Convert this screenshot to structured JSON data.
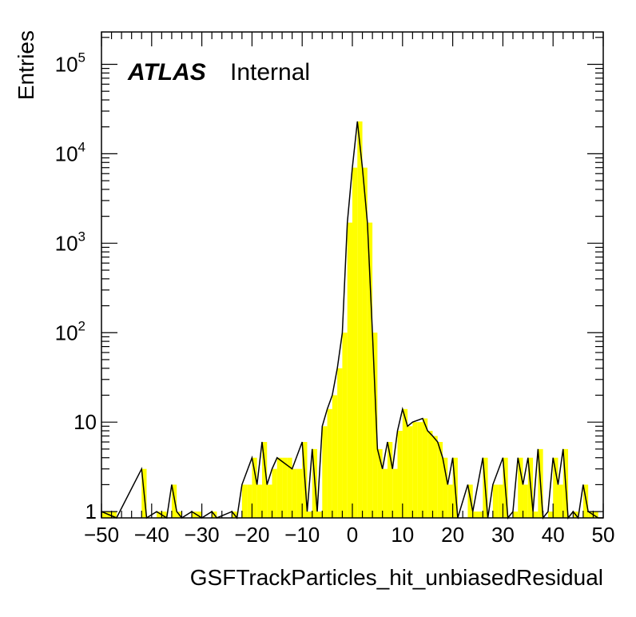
{
  "chart_data": {
    "type": "histogram",
    "xlabel": "GSFTrackParticles_hit_unbiasedResidual",
    "ylabel": "Entries",
    "label_bold": "ATLAS",
    "label_status": "Internal",
    "xlim": [
      -50,
      50
    ],
    "ylim": [
      0.85,
      230000
    ],
    "yscale": "log",
    "bin_width": 1,
    "x_ticks": [
      "−50",
      "−40",
      "−30",
      "−20",
      "−10",
      "0",
      "10",
      "20",
      "30",
      "40",
      "50"
    ],
    "y_ticks": [
      {
        "value": 1,
        "base": "1",
        "exp": ""
      },
      {
        "value": 10,
        "base": "10",
        "exp": ""
      },
      {
        "value": 100,
        "base": "10",
        "exp": "2"
      },
      {
        "value": 1000,
        "base": "10",
        "exp": "3"
      },
      {
        "value": 10000,
        "base": "10",
        "exp": "4"
      },
      {
        "value": 100000,
        "base": "10",
        "exp": "5"
      }
    ],
    "fill_color": "#ffff00",
    "line_color": "#000000",
    "grid": false,
    "bins": [
      [
        -50,
        1
      ],
      [
        -49,
        1
      ],
      [
        -48,
        1
      ],
      [
        -42,
        3
      ],
      [
        -39,
        1
      ],
      [
        -38,
        1
      ],
      [
        -36,
        2
      ],
      [
        -35,
        1
      ],
      [
        -32,
        1
      ],
      [
        -31,
        1
      ],
      [
        -28,
        1
      ],
      [
        -24,
        1
      ],
      [
        -22,
        2
      ],
      [
        -21,
        2
      ],
      [
        -20,
        4
      ],
      [
        -19,
        2
      ],
      [
        -18,
        6
      ],
      [
        -17,
        2
      ],
      [
        -16,
        3
      ],
      [
        -15,
        4
      ],
      [
        -14,
        4
      ],
      [
        -13,
        4
      ],
      [
        -12,
        3
      ],
      [
        -11,
        3
      ],
      [
        -10,
        6
      ],
      [
        -9,
        1
      ],
      [
        -8,
        5
      ],
      [
        -7,
        1
      ],
      [
        -6,
        9
      ],
      [
        -5,
        14
      ],
      [
        -4,
        20
      ],
      [
        -3,
        40
      ],
      [
        -2,
        100
      ],
      [
        -1,
        1700
      ],
      [
        0,
        7000
      ],
      [
        1,
        23000
      ],
      [
        2,
        7000
      ],
      [
        3,
        1700
      ],
      [
        4,
        100
      ],
      [
        5,
        5
      ],
      [
        6,
        3
      ],
      [
        7,
        6
      ],
      [
        8,
        3
      ],
      [
        9,
        8
      ],
      [
        10,
        14
      ],
      [
        11,
        9
      ],
      [
        12,
        10
      ],
      [
        13,
        10
      ],
      [
        14,
        11
      ],
      [
        15,
        8
      ],
      [
        16,
        7
      ],
      [
        17,
        6
      ],
      [
        18,
        4
      ],
      [
        19,
        2
      ],
      [
        20,
        4
      ],
      [
        23,
        2
      ],
      [
        24,
        1
      ],
      [
        25,
        1
      ],
      [
        26,
        4
      ],
      [
        28,
        2
      ],
      [
        29,
        2
      ],
      [
        30,
        4
      ],
      [
        32,
        1
      ],
      [
        33,
        4
      ],
      [
        34,
        2
      ],
      [
        35,
        4
      ],
      [
        36,
        1
      ],
      [
        37,
        5
      ],
      [
        39,
        1
      ],
      [
        40,
        4
      ],
      [
        41,
        2
      ],
      [
        42,
        5
      ],
      [
        44,
        1
      ],
      [
        46,
        2
      ],
      [
        47,
        1
      ],
      [
        48,
        1
      ]
    ]
  }
}
